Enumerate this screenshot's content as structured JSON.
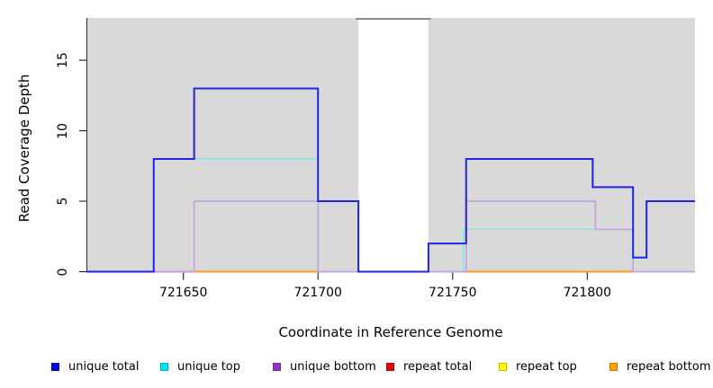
{
  "figure": {
    "background": "#ffffff",
    "plot_fill": "#d9d9d9"
  },
  "chart_data": {
    "type": "line",
    "subtype": "step-coverage",
    "title": "",
    "x_axis": {
      "label": "Coordinate in Reference Genome",
      "range": [
        721614,
        721840
      ],
      "ticks": [
        {
          "value": 721650,
          "label": "721650"
        },
        {
          "value": 721700,
          "label": "721700"
        },
        {
          "value": 721750,
          "label": "721750"
        },
        {
          "value": 721800,
          "label": "721800"
        }
      ]
    },
    "y_axis": {
      "label": "Read Coverage Depth",
      "range": [
        0,
        18
      ],
      "ticks": [
        {
          "value": 0,
          "label": "0"
        },
        {
          "value": 5,
          "label": "5"
        },
        {
          "value": 10,
          "label": "10"
        },
        {
          "value": 15,
          "label": "15"
        }
      ]
    },
    "plot_background_regions": [
      {
        "from": 721614,
        "to": 721715,
        "color": "#d9d9d9",
        "name": "aligned-region-left"
      },
      {
        "from": 721741,
        "to": 721840,
        "color": "#d9d9d9",
        "name": "aligned-region-right"
      }
    ],
    "gap_span": {
      "from": 721714,
      "to": 721742,
      "line_color": "#8c8c8c"
    },
    "series": [
      {
        "name": "unique total",
        "legend_color": "#0000ee",
        "line_color": "#2222e8",
        "width": 2,
        "points": [
          [
            721614,
            0
          ],
          [
            721639,
            8
          ],
          [
            721654,
            13
          ],
          [
            721700,
            5
          ],
          [
            721715,
            0
          ],
          [
            721741,
            2
          ],
          [
            721755,
            8
          ],
          [
            721802,
            6
          ],
          [
            721817,
            1
          ],
          [
            721822,
            5
          ],
          [
            721840,
            5
          ]
        ]
      },
      {
        "name": "unique top",
        "legend_color": "#00e5ee",
        "line_color": "#8be6e0",
        "width": 1.7,
        "points": [
          [
            721614,
            0
          ],
          [
            721639,
            8
          ],
          [
            721700,
            0
          ],
          [
            721754,
            3
          ],
          [
            721817,
            0
          ],
          [
            721840,
            0
          ]
        ]
      },
      {
        "name": "unique bottom",
        "legend_color": "#9932cc",
        "line_color": "#c9a0e6",
        "width": 1.7,
        "points": [
          [
            721614,
            0
          ],
          [
            721654,
            5
          ],
          [
            721700,
            0
          ],
          [
            721755,
            5
          ],
          [
            721803,
            3
          ],
          [
            721817,
            0
          ],
          [
            721840,
            0
          ]
        ]
      },
      {
        "name": "repeat total",
        "legend_color": "#ee0000",
        "line_color": "#cd5f6f",
        "width": 1.7,
        "points": [
          [
            721614,
            0
          ],
          [
            721840,
            0
          ]
        ]
      },
      {
        "name": "repeat top",
        "legend_color": "#ffff00",
        "line_color": "#e8e84a",
        "width": 1.7,
        "points": [
          [
            721614,
            0
          ],
          [
            721840,
            0
          ]
        ]
      },
      {
        "name": "repeat bottom",
        "legend_color": "#ffa500",
        "line_color": "#ff9c1e",
        "width": 1.7,
        "points": [
          [
            721614,
            0
          ],
          [
            721840,
            0
          ]
        ]
      }
    ],
    "baseline_segments": [
      {
        "from": 721614,
        "to": 721639,
        "color": "#4b3bef"
      },
      {
        "from": 721639,
        "to": 721654,
        "color": "#cd5f6f"
      },
      {
        "from": 721654,
        "to": 721700,
        "color": "#ff9c1e"
      },
      {
        "from": 721700,
        "to": 721715,
        "color": "#8ed195"
      },
      {
        "from": 721715,
        "to": 721741,
        "color": "#5646ee"
      },
      {
        "from": 721741,
        "to": 721754,
        "color": "#8ed195"
      },
      {
        "from": 721754,
        "to": 721817,
        "color": "#ff9c1e"
      },
      {
        "from": 721817,
        "to": 721840,
        "color": "#8ed195"
      }
    ],
    "legend_position": "bottom"
  }
}
